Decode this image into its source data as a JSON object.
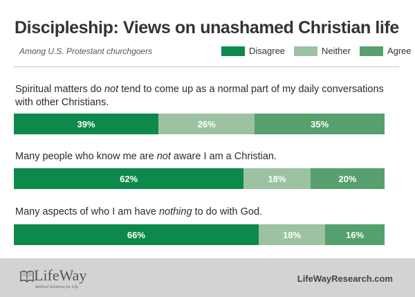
{
  "header": {
    "title": "Discipleship: Views on unashamed Christian life",
    "subtitle": "Among U.S. Protestant churchgoers"
  },
  "legend": [
    {
      "label": "Disagree",
      "color": "#0d8a4b"
    },
    {
      "label": "Neither",
      "color": "#9cc2a2"
    },
    {
      "label": "Agree",
      "color": "#55a06c"
    }
  ],
  "chart_data": {
    "type": "bar",
    "orientation": "horizontal",
    "stacked": true,
    "unit": "%",
    "categories": [
      "Spiritual matters do not tend to come up as a normal part of my daily conversations with other Christians.",
      "Many people who know me are not aware I am a Christian.",
      "Many aspects of who I am have nothing to do with God."
    ],
    "series": [
      {
        "name": "Disagree",
        "color": "#0d8a4b",
        "values": [
          39,
          62,
          66
        ]
      },
      {
        "name": "Neither",
        "color": "#9cc2a2",
        "values": [
          26,
          18,
          18
        ]
      },
      {
        "name": "Agree",
        "color": "#55a06c",
        "values": [
          35,
          20,
          16
        ]
      }
    ],
    "xlim": [
      0,
      100
    ],
    "grid": false,
    "legend_position": "top-right"
  },
  "questions": [
    {
      "pre": "Spiritual matters do ",
      "em": "not",
      "post": " tend to come up as a normal part of my daily conversations with other Christians."
    },
    {
      "pre": "Many people who know me are ",
      "em": "not",
      "post": " aware I am a Christian."
    },
    {
      "pre": "Many aspects of who I am have ",
      "em": "nothing",
      "post": " to do with God."
    }
  ],
  "footer": {
    "logo_text": "LifeWay",
    "tagline": "Biblical Solutions for Life",
    "site": "LifeWayResearch.com",
    "background": "#d3d3d3"
  }
}
